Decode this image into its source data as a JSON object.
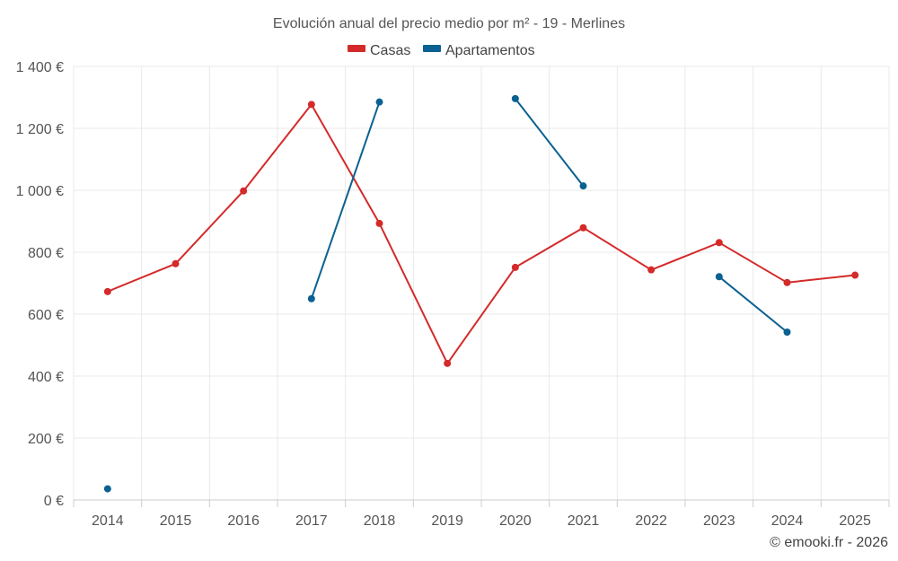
{
  "chart_data": {
    "type": "line",
    "title": "Evolución anual del precio medio por m² - 19 - Merlines",
    "xlabel": "",
    "ylabel": "",
    "categories": [
      "2014",
      "2015",
      "2016",
      "2017",
      "2018",
      "2019",
      "2020",
      "2021",
      "2022",
      "2023",
      "2024",
      "2025"
    ],
    "ylim": [
      0,
      1400
    ],
    "y_ticks": [
      0,
      200,
      400,
      600,
      800,
      1000,
      1200,
      1400
    ],
    "y_tick_labels": [
      "0 €",
      "200 €",
      "400 €",
      "600 €",
      "800 €",
      "1 000 €",
      "1 200 €",
      "1 400 €"
    ],
    "grid": true,
    "legend_position": "top-center",
    "series": [
      {
        "name": "Casas",
        "color": "#d42a2a",
        "values": [
          673,
          763,
          998,
          1277,
          893,
          441,
          751,
          879,
          743,
          831,
          702,
          726
        ]
      },
      {
        "name": "Apartamentos",
        "color": "#0b6191",
        "values": [
          36,
          null,
          null,
          650,
          1285,
          null,
          1296,
          1014,
          null,
          721,
          542,
          null
        ]
      }
    ],
    "credit": "© emooki.fr - 2026"
  }
}
